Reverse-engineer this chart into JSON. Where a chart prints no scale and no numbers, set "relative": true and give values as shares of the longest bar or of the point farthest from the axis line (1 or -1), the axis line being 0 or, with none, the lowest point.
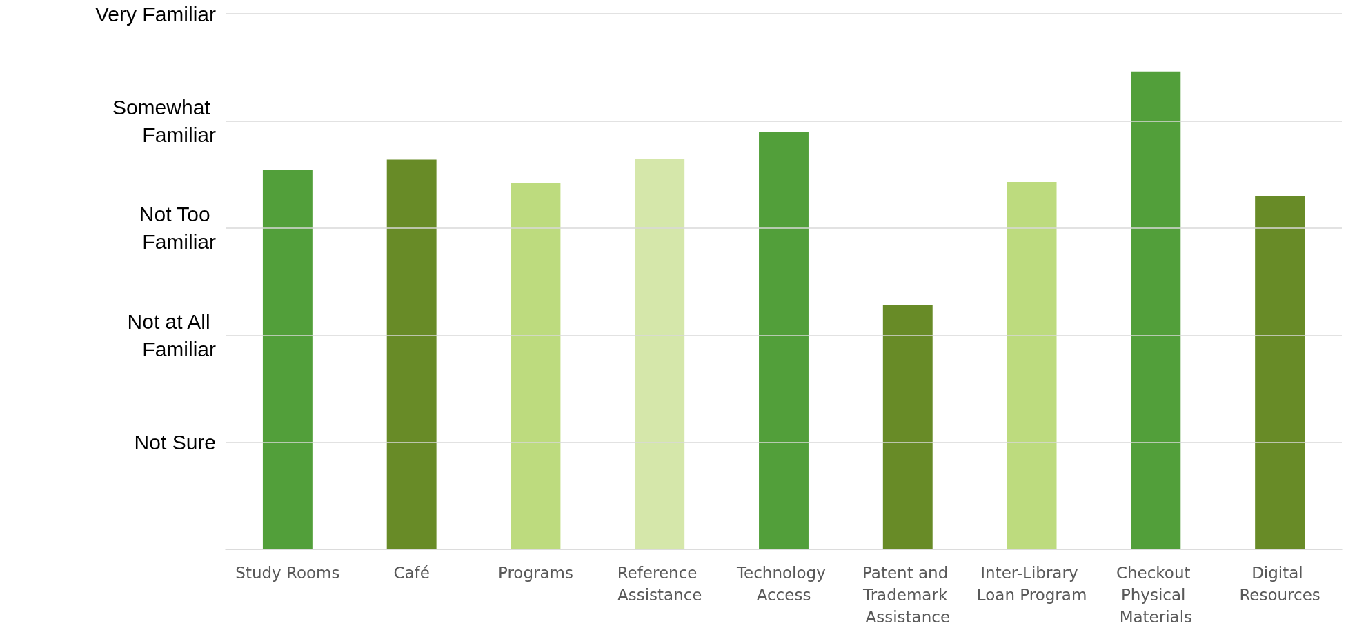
{
  "chart_data": {
    "type": "bar",
    "relative": true,
    "categories": [
      "Study Rooms",
      "Café",
      "Programs",
      "Reference Assistance",
      "Technology Access",
      "Patent and Trademark Assistance",
      "Inter-Library Loan Program",
      "Checkout Physical Materials",
      "Digital Resources"
    ],
    "values": [
      0.794,
      0.816,
      0.767,
      0.818,
      0.874,
      0.511,
      0.769,
      1,
      0.74
    ],
    "colors": [
      "#529f3a",
      "#688b27",
      "#bddb7e",
      "#d5e7aa",
      "#529f3a",
      "#688b27",
      "#bddb7e",
      "#529f3a",
      "#688b27"
    ],
    "ref_lines": [
      {
        "axis": "y",
        "value": 0.224,
        "label": "Not Sure",
        "color": "#d9d9d9"
      },
      {
        "axis": "y",
        "value": 0.448,
        "label": "Not at All Familiar",
        "color": "#d9d9d9"
      },
      {
        "axis": "y",
        "value": 0.673,
        "label": "Not Too Familiar",
        "color": "#d9d9d9"
      },
      {
        "axis": "y",
        "value": 0.897,
        "label": "Somewhat Familiar",
        "color": "#d9d9d9"
      },
      {
        "axis": "y",
        "value": 1.121,
        "label": "Very Familiar",
        "color": "#d9d9d9"
      }
    ]
  }
}
